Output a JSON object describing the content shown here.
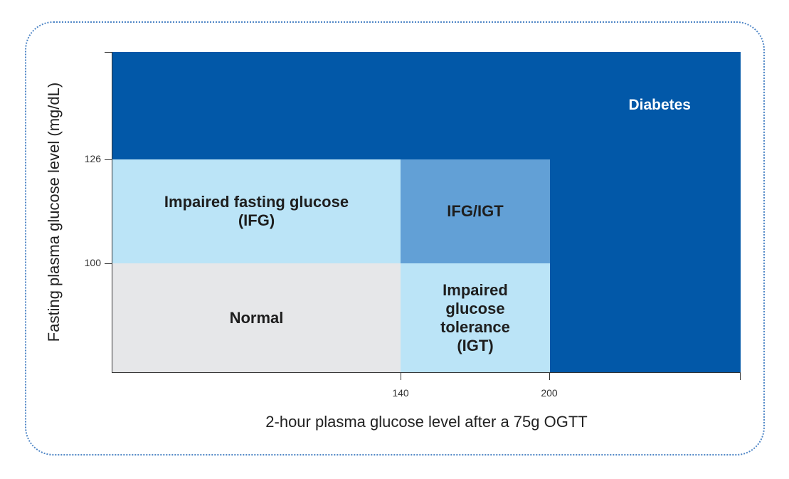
{
  "colors": {
    "frame_border": "#4f86c6",
    "diabetes": "#0258a8",
    "ifg": "#bbe4f7",
    "ifg_igt": "#62a0d6",
    "normal": "#e6e7e9",
    "igt": "#bbe4f7"
  },
  "regions": {
    "diabetes": "Diabetes",
    "ifg": "Impaired fasting glucose\n(IFG)",
    "ifg_igt": "IFG/IGT",
    "normal": "Normal",
    "igt": "Impaired\nglucose\ntolerance\n(IGT)"
  },
  "axes": {
    "x_title": "2-hour plasma glucose level after a 75g OGTT",
    "y_title": "Fasting plasma glucose level (mg/dL)",
    "x_ticks": [
      "140",
      "200"
    ],
    "y_ticks": [
      "126",
      "100"
    ]
  }
}
